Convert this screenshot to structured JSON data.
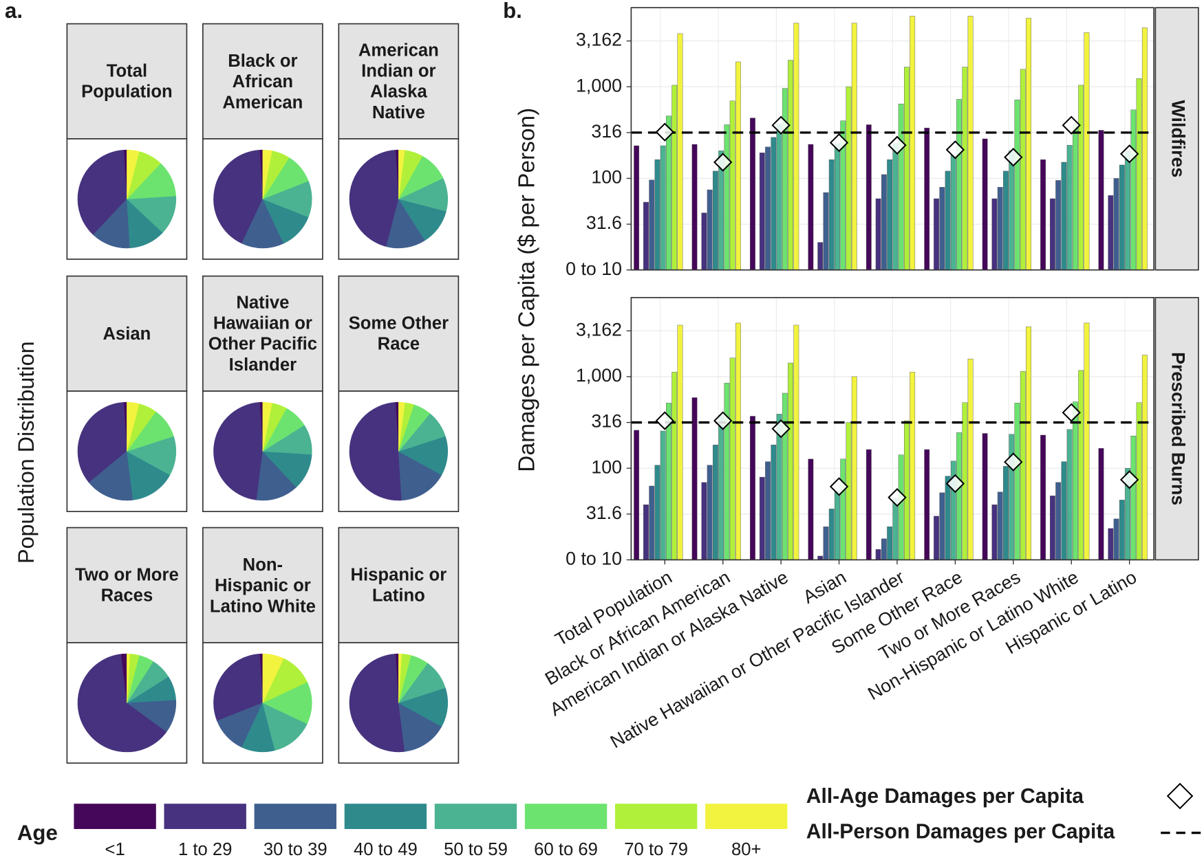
{
  "legend": {
    "title": "Age",
    "categories": [
      "<1",
      "1 to 29",
      "30 to 39",
      "40 to 49",
      "50 to 59",
      "60 to 69",
      "70 to 79",
      "80+"
    ],
    "colors": [
      "#45075a",
      "#46327e",
      "#3f5f8f",
      "#2f8a8c",
      "#4bb392",
      "#6ce36f",
      "#b0f03a",
      "#f2f33f"
    ],
    "all_age": "All-Age Damages per Capita",
    "all_person": "All-Person Damages per Capita"
  },
  "chart_data": [
    {
      "type": "pie",
      "panel_label": "a.",
      "ylabel": "Population Distribution",
      "facets": [
        {
          "title": "Total Population",
          "values": [
            1,
            37,
            13,
            12,
            13,
            12,
            8,
            4
          ]
        },
        {
          "title": "Black or African American",
          "values": [
            1,
            42,
            14,
            12,
            12,
            10,
            6,
            3
          ]
        },
        {
          "title": "American Indian or Alaska Native",
          "values": [
            1,
            45,
            13,
            12,
            11,
            10,
            6,
            2
          ]
        },
        {
          "title": "Asian",
          "values": [
            1,
            35,
            16,
            15,
            13,
            10,
            6,
            4
          ]
        },
        {
          "title": "Native Hawaiian or Other Pacific Islander",
          "values": [
            1,
            47,
            14,
            12,
            10,
            8,
            5,
            3
          ]
        },
        {
          "title": "Some Other Race",
          "values": [
            1,
            50,
            16,
            13,
            9,
            6,
            3,
            2
          ]
        },
        {
          "title": "Two or More Races",
          "values": [
            2,
            63,
            11,
            8,
            7,
            5,
            3,
            1
          ]
        },
        {
          "title": "Non-Hispanic or Latino White",
          "values": [
            1,
            30,
            12,
            11,
            14,
            14,
            11,
            7
          ]
        },
        {
          "title": "Hispanic or Latino",
          "values": [
            1,
            51,
            15,
            13,
            10,
            6,
            3,
            1
          ]
        }
      ]
    },
    {
      "type": "bar",
      "panel_label": "b.",
      "ylabel": "Damages per Capita ($ per Person)",
      "categories": [
        "Total Population",
        "Black or African American",
        "American Indian or Alaska Native",
        "Asian",
        "Native Hawaiian or Other Pacific Islander",
        "Some Other Race",
        "Two or More Races",
        "Non-Hispanic or Latino White",
        "Hispanic or Latino"
      ],
      "yscale": "log",
      "ylim": [
        10,
        7300
      ],
      "grid": true,
      "yticks": [
        {
          "value": 10,
          "label": "0 to 10"
        },
        31.6,
        100,
        316,
        {
          "value": 1000,
          "label": "1,000"
        },
        {
          "value": 3162,
          "label": "3,162"
        }
      ],
      "facets": [
        {
          "title": "Wildfires",
          "series": [
            {
              "values": [
                227,
                235,
                456,
                235,
                385,
                355,
                270,
                160,
                335
              ]
            },
            {
              "values": [
                55,
                42,
                190,
                20,
                60,
                60,
                60,
                60,
                65
              ]
            },
            {
              "values": [
                96,
                75,
                220,
                70,
                110,
                80,
                80,
                95,
                100
              ]
            },
            {
              "values": [
                160,
                120,
                280,
                160,
                160,
                120,
                120,
                150,
                140
              ]
            },
            {
              "values": [
                227,
                200,
                390,
                240,
                240,
                180,
                200,
                230,
                200
              ]
            },
            {
              "values": [
                480,
                385,
                960,
                425,
                650,
                730,
                720,
                390,
                560
              ]
            },
            {
              "values": [
                1040,
                700,
                1950,
                1000,
                1640,
                1640,
                1550,
                1040,
                1230
              ]
            },
            {
              "values": [
                3800,
                1870,
                4950,
                4950,
                5900,
                5900,
                5600,
                3900,
                4400
              ]
            }
          ],
          "all_age": [
            320,
            150,
            380,
            245,
            230,
            205,
            170,
            380,
            185
          ],
          "all_person": 316
        },
        {
          "title": "Prescribed Burns",
          "series": [
            {
              "values": [
                260,
                590,
                370,
                126,
                160,
                160,
                240,
                230,
                165
              ]
            },
            {
              "values": [
                40,
                70,
                80,
                11,
                13,
                30,
                40,
                50,
                22
              ]
            },
            {
              "values": [
                64,
                108,
                118,
                23,
                17,
                54,
                55,
                70,
                28
              ]
            },
            {
              "values": [
                108,
                180,
                180,
                36,
                23,
                82,
                105,
                118,
                45
              ]
            },
            {
              "values": [
                255,
                380,
                390,
                57,
                47,
                120,
                235,
                265,
                100
              ]
            },
            {
              "values": [
                515,
                850,
                660,
                126,
                140,
                245,
                515,
                530,
                225
              ]
            },
            {
              "values": [
                1120,
                1600,
                1410,
                315,
                330,
                520,
                1140,
                1170,
                520
              ]
            },
            {
              "values": [
                3650,
                3850,
                3650,
                1000,
                1120,
                1560,
                3500,
                3850,
                1720
              ]
            }
          ],
          "all_age": [
            330,
            330,
            270,
            63,
            48,
            68,
            117,
            405,
            75
          ],
          "all_person": 316
        }
      ]
    }
  ]
}
